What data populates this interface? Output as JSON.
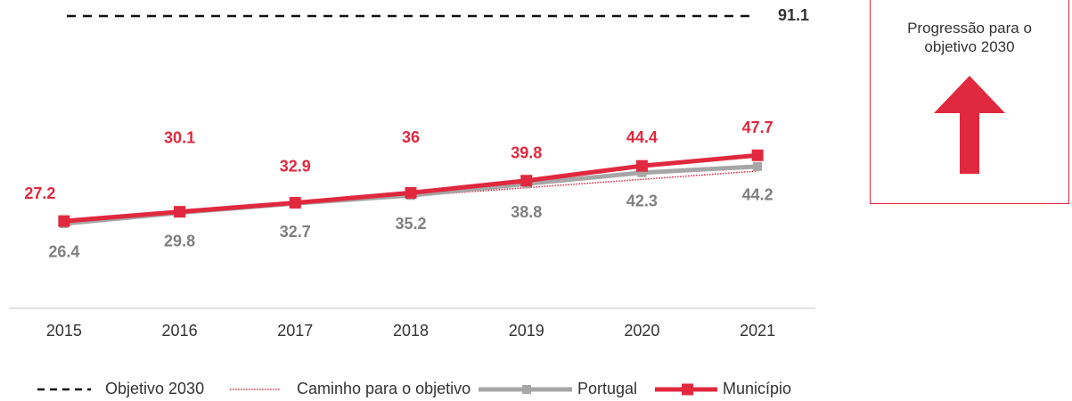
{
  "chart_data": {
    "type": "line",
    "categories": [
      "2015",
      "2016",
      "2017",
      "2018",
      "2019",
      "2020",
      "2021"
    ],
    "target": {
      "name": "Objetivo 2030",
      "value": 91.1,
      "color": "#111111"
    },
    "series": [
      {
        "name": "Caminho para o objetivo",
        "color": "#e0283e",
        "style": "dotted",
        "values": [
          27.2,
          29.8,
          32.4,
          35.0,
          37.6,
          40.2,
          42.8
        ]
      },
      {
        "name": "Portugal",
        "color": "#a6a6a6",
        "label_color": "#7f7f7f",
        "style": "solid",
        "values": [
          26.4,
          29.8,
          32.7,
          35.2,
          38.8,
          42.3,
          44.2
        ]
      },
      {
        "name": "Município",
        "color": "#e0283e",
        "label_color": "#e0283e",
        "style": "solid",
        "values": [
          27.2,
          30.1,
          32.9,
          36.0,
          39.8,
          44.4,
          47.7
        ]
      }
    ],
    "ylim": [
      0,
      95
    ],
    "side_note": "Progressão para o objetivo 2030"
  }
}
